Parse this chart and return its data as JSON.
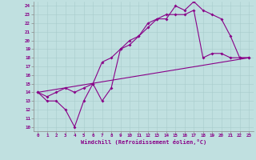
{
  "xlabel": "Windchill (Refroidissement éolien,°C)",
  "bg_color": "#c0e0e0",
  "line_color": "#880088",
  "xlim": [
    -0.5,
    23.5
  ],
  "ylim": [
    9.5,
    24.5
  ],
  "xticks": [
    0,
    1,
    2,
    3,
    4,
    5,
    6,
    7,
    8,
    9,
    10,
    11,
    12,
    13,
    14,
    15,
    16,
    17,
    18,
    19,
    20,
    21,
    22,
    23
  ],
  "yticks": [
    10,
    11,
    12,
    13,
    14,
    15,
    16,
    17,
    18,
    19,
    20,
    21,
    22,
    23,
    24
  ],
  "line1_x": [
    0,
    1,
    2,
    3,
    4,
    5,
    6,
    7,
    8,
    9,
    10,
    11,
    12,
    13,
    14,
    15,
    16,
    17,
    18,
    19,
    20,
    21,
    22,
    23
  ],
  "line1_y": [
    14,
    13,
    13,
    12,
    10,
    13,
    15,
    13,
    14.5,
    19,
    20,
    20.5,
    22,
    22.5,
    22.5,
    24,
    23.5,
    24.5,
    23.5,
    23,
    22.5,
    20.5,
    18,
    18
  ],
  "line2_x": [
    0,
    1,
    2,
    3,
    4,
    5,
    6,
    7,
    8,
    9,
    10,
    11,
    12,
    13,
    14,
    15,
    16,
    17,
    18,
    19,
    20,
    21,
    22,
    23
  ],
  "line2_y": [
    14,
    13.5,
    14,
    14.5,
    14,
    14.5,
    15,
    17.5,
    18,
    19,
    19.5,
    20.5,
    21.5,
    22.5,
    23,
    23,
    23,
    23.5,
    18,
    18.5,
    18.5,
    18,
    18,
    18
  ],
  "line3_x": [
    0,
    23
  ],
  "line3_y": [
    14,
    18
  ]
}
